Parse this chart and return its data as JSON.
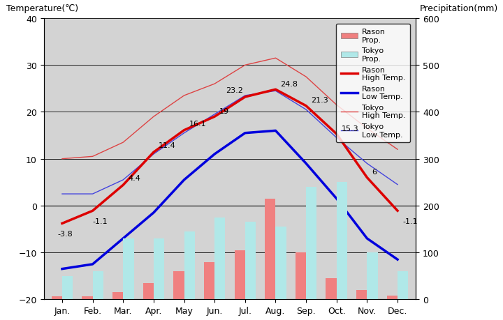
{
  "months": [
    "Jan.",
    "Feb.",
    "Mar.",
    "Apr.",
    "May",
    "Jun.",
    "Jul.",
    "Aug.",
    "Sep.",
    "Oct.",
    "Nov.",
    "Dec."
  ],
  "rason_high_temp": [
    -3.8,
    -1.1,
    4.4,
    11.4,
    16.1,
    19.0,
    23.2,
    24.8,
    21.3,
    15.3,
    6.0,
    -1.1
  ],
  "rason_low_temp": [
    -13.5,
    -12.5,
    -7.0,
    -1.5,
    5.5,
    11.0,
    15.5,
    16.0,
    9.0,
    1.5,
    -7.0,
    -11.5
  ],
  "tokyo_high_temp": [
    10.0,
    10.5,
    13.5,
    19.0,
    23.5,
    26.0,
    30.0,
    31.5,
    27.5,
    21.5,
    16.5,
    12.0
  ],
  "tokyo_low_temp": [
    2.5,
    2.5,
    5.5,
    11.0,
    15.5,
    19.5,
    23.5,
    24.5,
    20.5,
    14.5,
    9.0,
    4.5
  ],
  "rason_precip_mm": [
    7,
    7,
    15,
    35,
    60,
    80,
    105,
    215,
    100,
    45,
    20,
    8
  ],
  "tokyo_precip_mm": [
    50,
    60,
    130,
    130,
    145,
    175,
    165,
    155,
    240,
    250,
    100,
    60
  ],
  "rason_high_labels": [
    "-3.8",
    "-1.1",
    "4.4",
    "11.4",
    "16.1",
    "19",
    "23.2",
    "24.8",
    "21.3",
    "15.3",
    "6",
    "-1.1"
  ],
  "temp_ylim": [
    -20,
    40
  ],
  "precip_ylim": [
    0,
    600
  ],
  "plot_bg_color": "#d3d3d3",
  "rason_bar_color": "#f08080",
  "tokyo_bar_color": "#b0e8e8",
  "rason_high_color": "#dd0000",
  "rason_low_color": "#0000dd",
  "tokyo_high_color": "#dd4444",
  "tokyo_low_color": "#4444dd",
  "bar_width": 0.35,
  "title_left": "Temperature(℃)",
  "title_right": "Precipitation(mm)"
}
